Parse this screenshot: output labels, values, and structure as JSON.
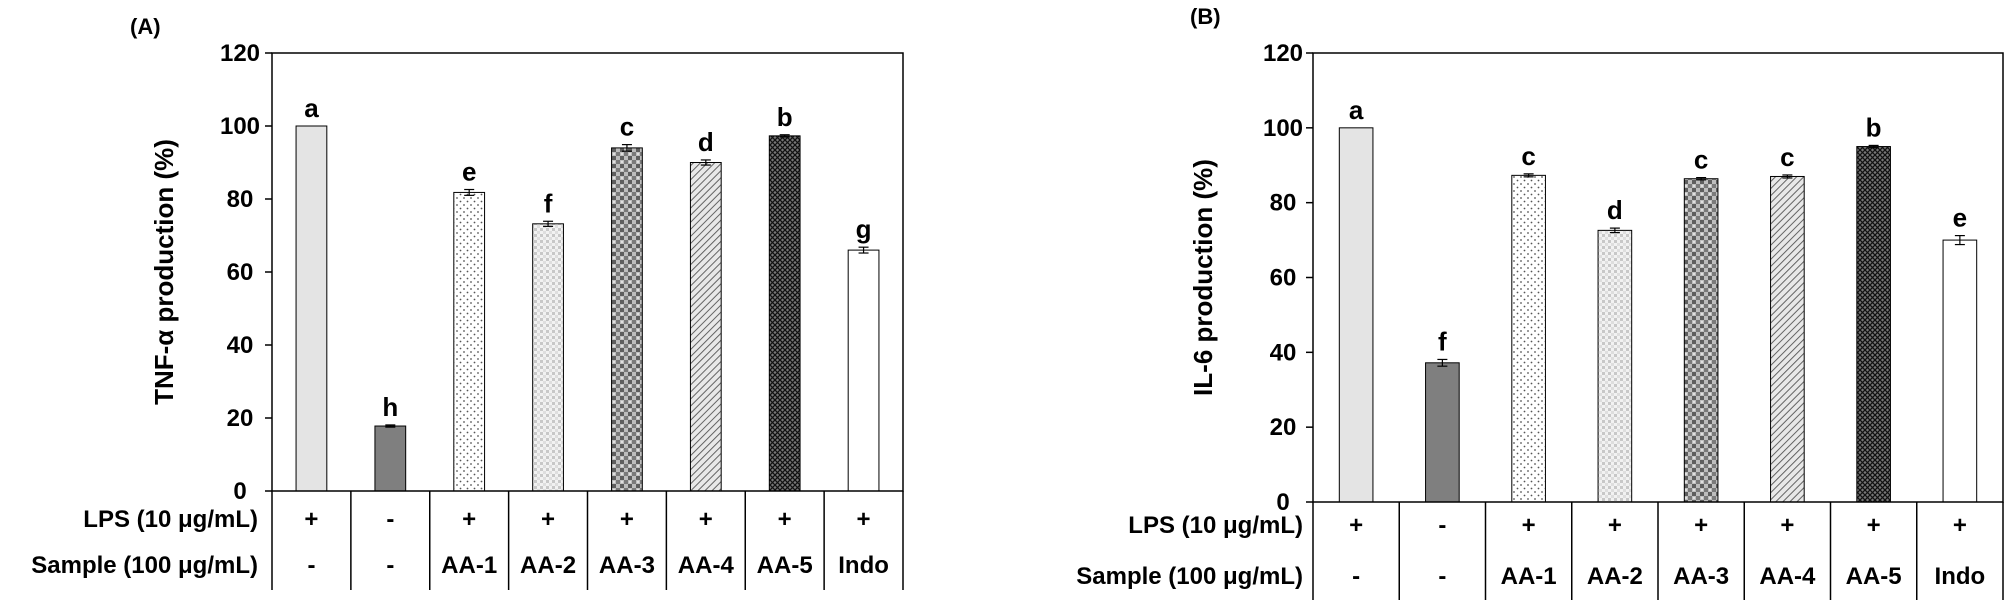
{
  "chart_data": [
    {
      "type": "bar",
      "panel_label": "(A)",
      "ylabel": "TNF-α production (%)",
      "ylim": [
        0,
        120
      ],
      "yticks": [
        0,
        20,
        40,
        60,
        80,
        100,
        120
      ],
      "values": [
        100,
        17.8,
        81.8,
        73.2,
        94.0,
        90.0,
        97.3,
        66.0
      ],
      "errors": [
        0,
        0.3,
        0.8,
        0.7,
        0.9,
        0.7,
        0.3,
        0.8
      ],
      "significance": [
        "a",
        "h",
        "e",
        "f",
        "c",
        "d",
        "b",
        "g"
      ],
      "bar_styles": [
        "light-gray",
        "dark-gray",
        "dots",
        "grid-light",
        "grid-dark",
        "diagonal",
        "crosshatch",
        "white"
      ],
      "row_labels": [
        "LPS (10 μg/mL)",
        "Sample (100 μg/mL)"
      ],
      "rows": [
        [
          "+",
          "-",
          "+",
          "+",
          "+",
          "+",
          "+",
          "+"
        ],
        [
          "-",
          "-",
          "AA-1",
          "AA-2",
          "AA-3",
          "AA-4",
          "AA-5",
          "Indo"
        ]
      ]
    },
    {
      "type": "bar",
      "panel_label": "(B)",
      "ylabel": "IL-6 production (%)",
      "ylim": [
        0,
        120
      ],
      "yticks": [
        0,
        20,
        40,
        60,
        80,
        100,
        120
      ],
      "values": [
        100,
        37.2,
        87.3,
        72.6,
        86.4,
        87.0,
        95.0,
        70.0
      ],
      "errors": [
        0,
        0.9,
        0.4,
        0.6,
        0.3,
        0.4,
        0.3,
        1.2
      ],
      "significance": [
        "a",
        "f",
        "c",
        "d",
        "c",
        "c",
        "b",
        "e"
      ],
      "bar_styles": [
        "light-gray",
        "dark-gray",
        "dots",
        "grid-light",
        "grid-dark",
        "diagonal",
        "crosshatch",
        "white"
      ],
      "row_labels": [
        "LPS (10 μg/mL)",
        "Sample (100 μg/mL)"
      ],
      "rows": [
        [
          "+",
          "-",
          "+",
          "+",
          "+",
          "+",
          "+",
          "+"
        ],
        [
          "-",
          "-",
          "AA-1",
          "AA-2",
          "AA-3",
          "AA-4",
          "AA-5",
          "Indo"
        ]
      ]
    }
  ]
}
